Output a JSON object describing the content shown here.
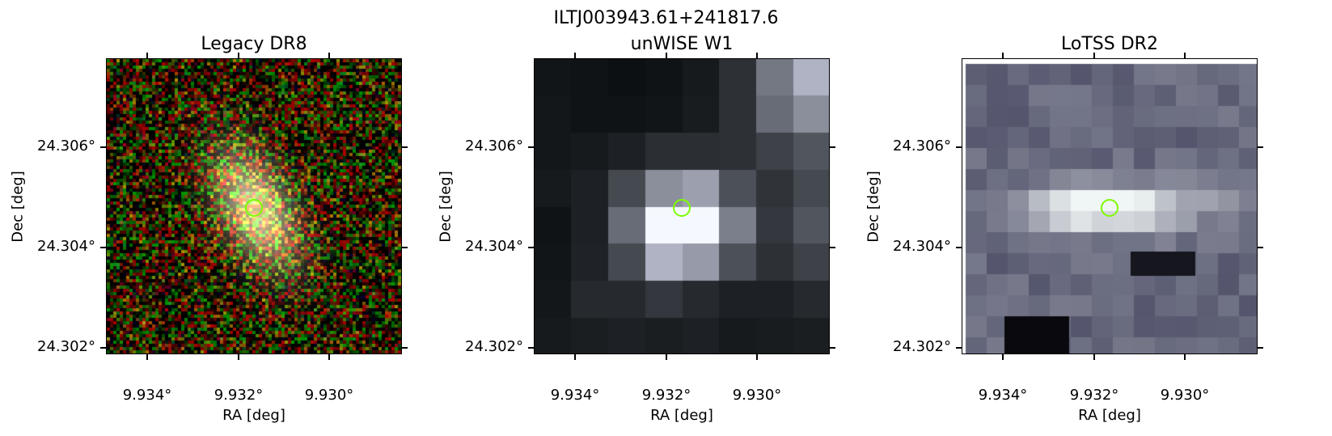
{
  "figure_title": "ILTJ003943.61+241817.6",
  "panels": [
    {
      "title": "Legacy DR8",
      "xlabel": "RA [deg]",
      "ylabel": "Dec [deg]",
      "xticks": [
        "9.934°",
        "9.932°",
        "9.930°"
      ],
      "yticks": [
        "24.306°",
        "24.304°",
        "24.302°"
      ],
      "image": "optical RGB galaxy cutout, elongated yellowish-white source at center on noisy red/green/black background"
    },
    {
      "title": "unWISE W1",
      "xlabel": "RA [deg]",
      "ylabel": "Dec [deg]",
      "xticks": [
        "9.934°",
        "9.932°",
        "9.930°"
      ],
      "yticks": [
        "24.306°",
        "24.304°",
        "24.302°"
      ],
      "image": "coarse pixelated grayscale infrared cutout with bright source at center"
    },
    {
      "title": "LoTSS DR2",
      "xlabel": "RA [deg]",
      "ylabel": "Dec [deg]",
      "xticks": [
        "9.934°",
        "9.932°",
        "9.930°"
      ],
      "yticks": [
        "24.306°",
        "24.304°",
        "24.302°"
      ],
      "image": "blocky bluish-gray radio cutout with horizontally elongated bright emission at center"
    }
  ],
  "marker_color": "#7cfc00"
}
